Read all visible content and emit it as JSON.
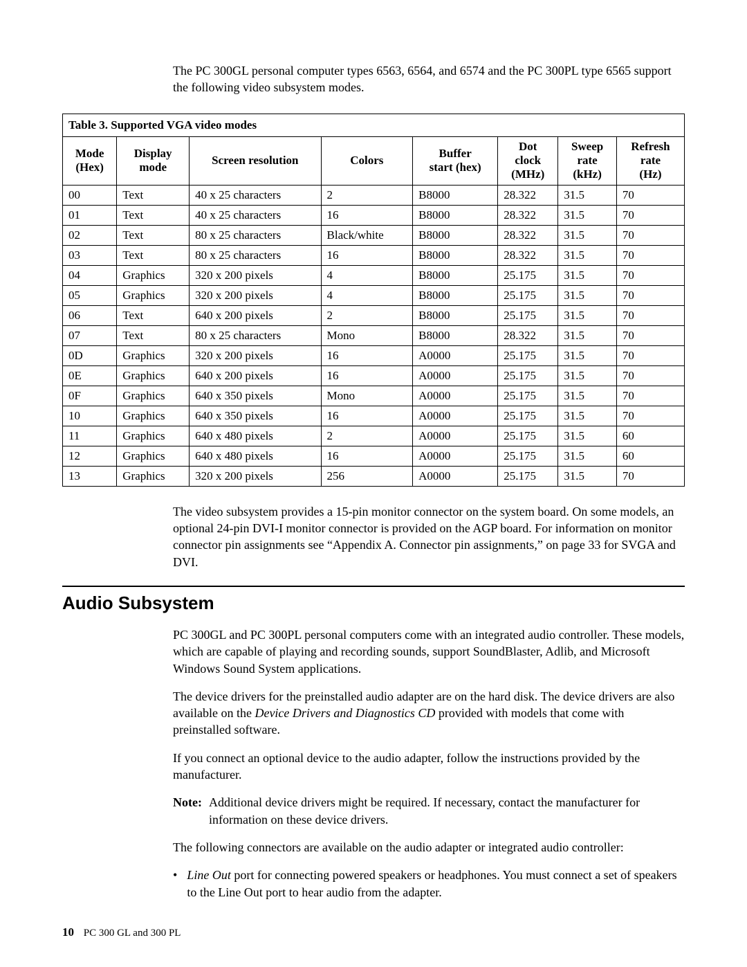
{
  "intro": "The PC 300GL personal computer types 6563, 6564, and 6574 and the PC 300PL type 6565 support the following video subsystem modes.",
  "table": {
    "caption": "Table 3.  Supported VGA video modes",
    "columns": [
      "Mode (Hex)",
      "Display mode",
      "Screen resolution",
      "Colors",
      "Buffer start (hex)",
      "Dot clock (MHz)",
      "Sweep rate (kHz)",
      "Refresh rate (Hz)"
    ],
    "rows": [
      [
        "00",
        "Text",
        "40 x 25 characters",
        "2",
        "B8000",
        "28.322",
        "31.5",
        "70"
      ],
      [
        "01",
        "Text",
        "40 x 25 characters",
        "16",
        "B8000",
        "28.322",
        "31.5",
        "70"
      ],
      [
        "02",
        "Text",
        "80 x 25 characters",
        "Black/white",
        "B8000",
        "28.322",
        "31.5",
        "70"
      ],
      [
        "03",
        "Text",
        "80 x 25 characters",
        "16",
        "B8000",
        "28.322",
        "31.5",
        "70"
      ],
      [
        "04",
        "Graphics",
        "320 x 200 pixels",
        "4",
        "B8000",
        "25.175",
        "31.5",
        "70"
      ],
      [
        "05",
        "Graphics",
        "320 x 200 pixels",
        "4",
        "B8000",
        "25.175",
        "31.5",
        "70"
      ],
      [
        "06",
        "Text",
        "640 x 200 pixels",
        "2",
        "B8000",
        "25.175",
        "31.5",
        "70"
      ],
      [
        "07",
        "Text",
        "80 x 25 characters",
        "Mono",
        "B8000",
        "28.322",
        "31.5",
        "70"
      ],
      [
        "0D",
        "Graphics",
        "320 x 200 pixels",
        "16",
        "A0000",
        "25.175",
        "31.5",
        "70"
      ],
      [
        "0E",
        "Graphics",
        "640 x 200 pixels",
        "16",
        "A0000",
        "25.175",
        "31.5",
        "70"
      ],
      [
        "0F",
        "Graphics",
        "640 x 350 pixels",
        "Mono",
        "A0000",
        "25.175",
        "31.5",
        "70"
      ],
      [
        "10",
        "Graphics",
        "640 x 350 pixels",
        "16",
        "A0000",
        "25.175",
        "31.5",
        "70"
      ],
      [
        "11",
        "Graphics",
        "640 x 480 pixels",
        "2",
        "A0000",
        "25.175",
        "31.5",
        "60"
      ],
      [
        "12",
        "Graphics",
        "640 x 480 pixels",
        "16",
        "A0000",
        "25.175",
        "31.5",
        "60"
      ],
      [
        "13",
        "Graphics",
        "320 x 200 pixels",
        "256",
        "A0000",
        "25.175",
        "31.5",
        "70"
      ]
    ]
  },
  "after_table": "The video subsystem provides a 15-pin monitor connector on the system board.  On some models, an optional 24-pin DVI-I monitor connector is provided on the AGP board.  For information on monitor connector pin assignments see  “Appendix A. Connector pin assignments,” on page 33 for SVGA and DVI.",
  "section_heading": "Audio Subsystem",
  "audio_p1": "PC 300GL and PC 300PL personal computers come with an integrated audio controller.  These models, which are capable of playing and recording sounds, support SoundBlaster, Adlib, and Microsoft Windows Sound System applications.",
  "audio_p2_a": "The device drivers for the preinstalled audio adapter are on the hard disk.  The device drivers are also available on the ",
  "audio_p2_italic": "Device Drivers and Diagnostics CD",
  "audio_p2_b": " provided with models that come with preinstalled software.",
  "audio_p3": "If you connect an optional device to the audio adapter, follow the instructions provided by the manufacturer.",
  "note_label": "Note:",
  "note_text": "Additional device drivers might be required.  If necessary, contact the manufacturer for information on these device drivers.",
  "audio_p4": "The following connectors are available on the audio adapter or integrated audio controller:",
  "bullet_symbol": "•",
  "bullet_italic": "Line Out",
  "bullet_rest": " port for connecting powered speakers or headphones.  You must connect a set of speakers to the Line Out port to hear audio from the adapter.",
  "footer_page": "10",
  "footer_text": "PC 300 GL and 300 PL"
}
